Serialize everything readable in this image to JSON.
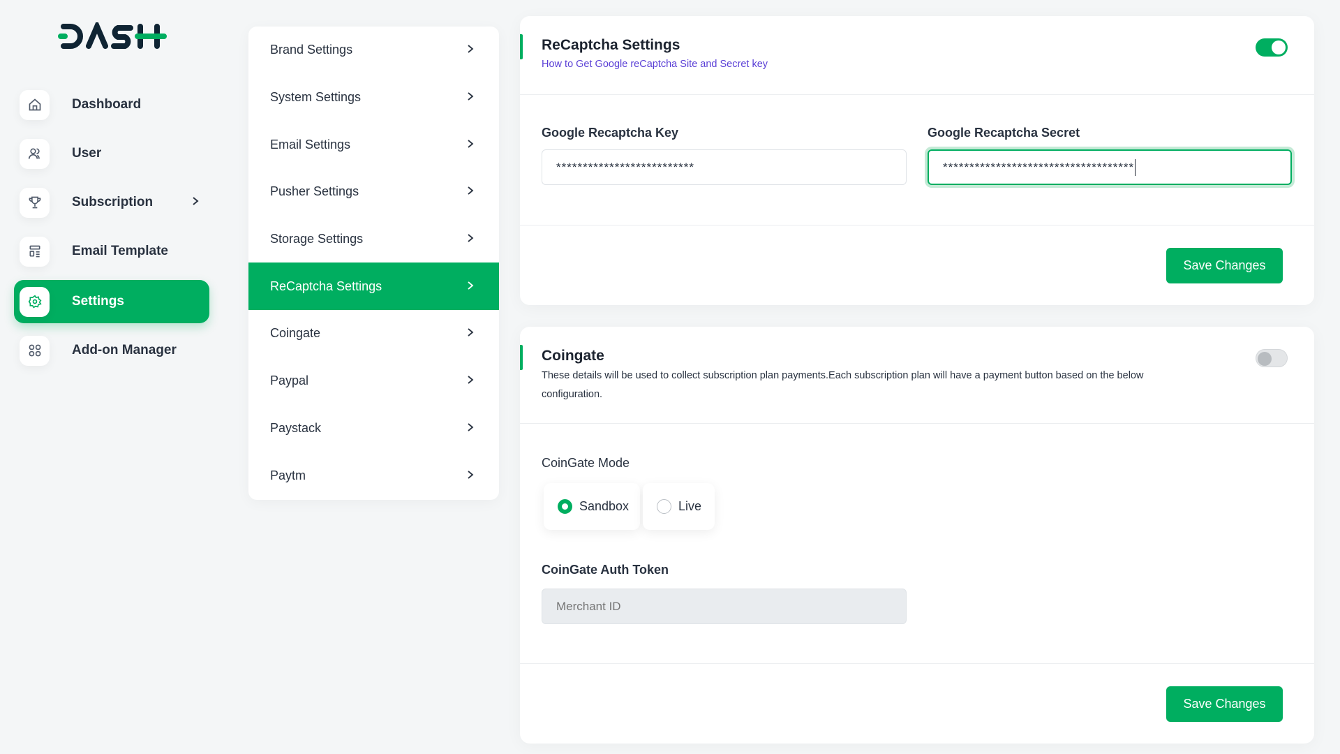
{
  "brand": {
    "logo_text": "DASH",
    "accent": "#00ae60"
  },
  "sidebar": {
    "items": [
      {
        "label": "Dashboard",
        "icon": "home-icon"
      },
      {
        "label": "User",
        "icon": "users-icon"
      },
      {
        "label": "Subscription",
        "icon": "trophy-icon",
        "has_submenu": true
      },
      {
        "label": "Email Template",
        "icon": "template-icon"
      },
      {
        "label": "Settings",
        "icon": "gear-icon",
        "active": true
      },
      {
        "label": "Add-on Manager",
        "icon": "grid-icon"
      }
    ]
  },
  "settings_menu": {
    "items": [
      {
        "label": "Brand Settings"
      },
      {
        "label": "System Settings"
      },
      {
        "label": "Email Settings"
      },
      {
        "label": "Pusher Settings"
      },
      {
        "label": "Storage Settings"
      },
      {
        "label": "ReCaptcha Settings",
        "active": true
      },
      {
        "label": "Coingate"
      },
      {
        "label": "Paypal"
      },
      {
        "label": "Paystack"
      },
      {
        "label": "Paytm"
      }
    ]
  },
  "recaptcha": {
    "title": "ReCaptcha Settings",
    "help_link": "How to Get Google reCaptcha Site and Secret key",
    "enabled": true,
    "key_label": "Google Recaptcha Key",
    "key_value": "**************************",
    "secret_label": "Google Recaptcha Secret",
    "secret_value": "************************************",
    "save_label": "Save Changes"
  },
  "coingate": {
    "title": "Coingate",
    "description": "These details will be used to collect subscription plan payments.Each subscription plan will have a payment button based on the below configuration.",
    "enabled": false,
    "mode_label": "CoinGate Mode",
    "modes": [
      {
        "label": "Sandbox",
        "selected": true
      },
      {
        "label": "Live",
        "selected": false
      }
    ],
    "token_label": "CoinGate Auth Token",
    "token_placeholder": "Merchant ID",
    "save_label": "Save Changes"
  }
}
